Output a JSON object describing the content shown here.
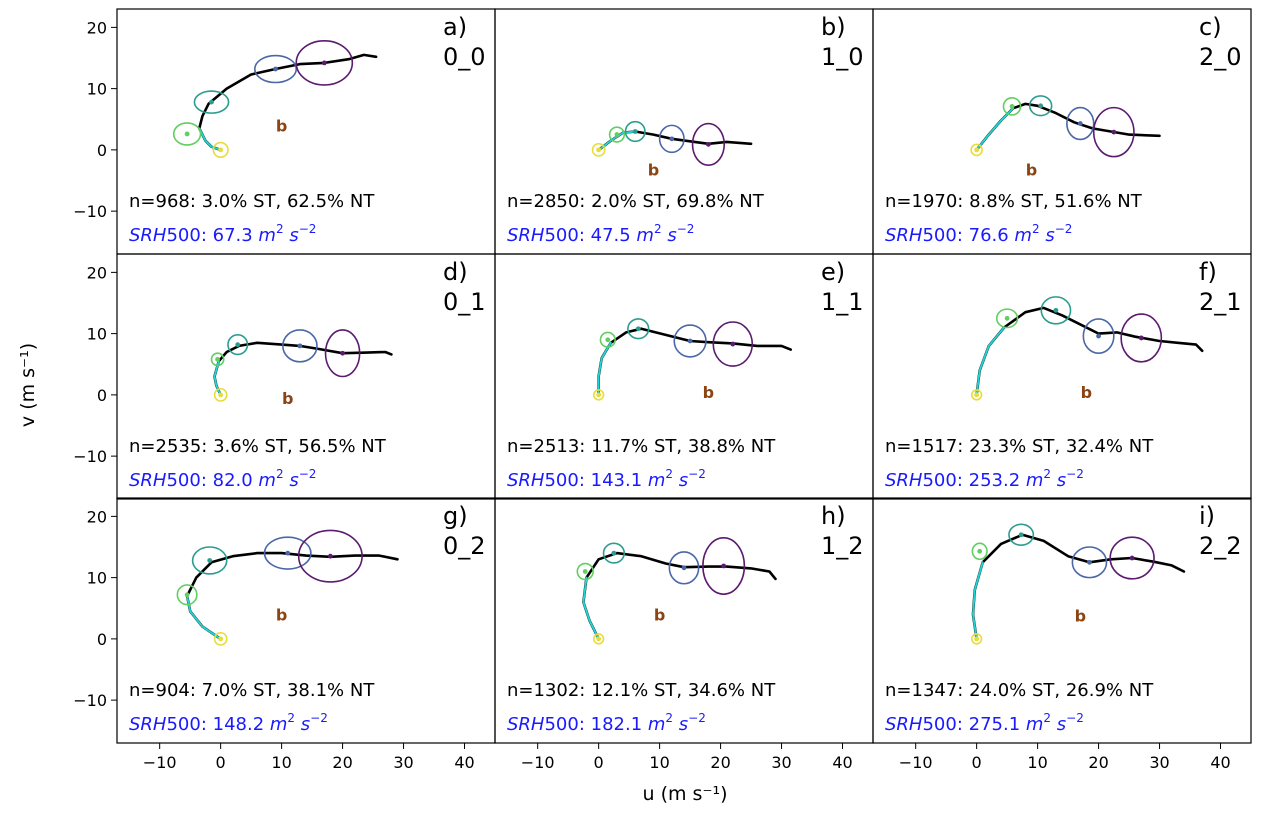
{
  "figure": {
    "xlabel": "u (m s⁻¹)",
    "ylabel": "v (m s⁻¹)"
  },
  "chart_data": {
    "type": "line",
    "xlim": [
      -17,
      45
    ],
    "ylim": [
      -17,
      23
    ],
    "xticks": [
      "−10",
      "0",
      "10",
      "20",
      "30",
      "40"
    ],
    "xtick_values": [
      -10,
      0,
      10,
      20,
      30,
      40
    ],
    "yticks": [
      "20",
      "10",
      "0",
      "−10"
    ],
    "ytick_values": [
      20,
      10,
      0,
      -10
    ],
    "grid": false,
    "marker_label": "b",
    "colors": {
      "hodograph": "#000000",
      "lowlevel": "#22d3d3",
      "ring0": "#e8dc3a",
      "ring1": "#5fcf5f",
      "ring2": "#2a9d8f",
      "ring3": "#4a67a8",
      "ring4": "#5b1b6e",
      "stats_text": "#000000",
      "srh_text": "#1a1aff",
      "b_label": "#8b4513"
    },
    "panels": [
      {
        "letter": "a)",
        "cluster": "0_0",
        "stats": "n=968: 3.0% ST, 62.5% NT",
        "srh_value": "67.3",
        "curve": [
          [
            0,
            0
          ],
          [
            -1.5,
            0.5
          ],
          [
            -2.5,
            1.5
          ],
          [
            -3.5,
            3.5
          ],
          [
            -3,
            5.5
          ],
          [
            -2,
            7.5
          ],
          [
            1,
            10
          ],
          [
            5,
            12.3
          ],
          [
            9,
            13.2
          ],
          [
            13,
            14
          ],
          [
            17,
            14.2
          ],
          [
            21,
            14.8
          ],
          [
            23.5,
            15.5
          ],
          [
            25.5,
            15.2
          ]
        ],
        "rings": [
          [
            0,
            0,
            1.2,
            1.2
          ],
          [
            -5.5,
            2.6,
            2.2,
            1.8
          ],
          [
            -1.5,
            7.8,
            2.8,
            1.8
          ],
          [
            9,
            13.2,
            3.4,
            2.2
          ],
          [
            17,
            14.2,
            4.6,
            3.6
          ]
        ],
        "b": [
          10,
          4
        ]
      },
      {
        "letter": "d)",
        "cluster": "0_1",
        "stats": "n=2535: 3.6% ST, 56.5% NT",
        "srh_value": "82.0",
        "curve": [
          [
            0,
            0
          ],
          [
            -0.7,
            1.5
          ],
          [
            -1,
            3
          ],
          [
            -0.3,
            5.5
          ],
          [
            1,
            7
          ],
          [
            3,
            8
          ],
          [
            6,
            8.5
          ],
          [
            10,
            8.2
          ],
          [
            13,
            8
          ],
          [
            16,
            7.5
          ],
          [
            20,
            6.8
          ],
          [
            24,
            6.9
          ],
          [
            27,
            7
          ],
          [
            28,
            6.6
          ]
        ],
        "rings": [
          [
            0,
            0,
            1,
            1
          ],
          [
            -0.5,
            5.8,
            1,
            1
          ],
          [
            2.8,
            8.2,
            1.6,
            1.6
          ],
          [
            13,
            8,
            2.8,
            2.6
          ],
          [
            20,
            6.8,
            2.8,
            3.8
          ]
        ],
        "b": [
          11,
          -0.5
        ]
      },
      {
        "letter": "g)",
        "cluster": "0_2",
        "stats": "n=904: 7.0% ST, 38.1% NT",
        "srh_value": "148.2",
        "curve": [
          [
            0,
            0
          ],
          [
            -3,
            2
          ],
          [
            -5,
            4.5
          ],
          [
            -5.5,
            7
          ],
          [
            -4,
            10
          ],
          [
            -1.5,
            12.5
          ],
          [
            2,
            13.5
          ],
          [
            6,
            14
          ],
          [
            10,
            14
          ],
          [
            14,
            13.6
          ],
          [
            18,
            13.4
          ],
          [
            22,
            13.6
          ],
          [
            26,
            13.6
          ],
          [
            29,
            13
          ]
        ],
        "rings": [
          [
            0,
            0,
            1,
            1
          ],
          [
            -5.5,
            7.2,
            1.6,
            1.6
          ],
          [
            -1.8,
            12.8,
            2.8,
            2.2
          ],
          [
            11,
            14,
            3.8,
            2.6
          ],
          [
            18,
            13.5,
            5.2,
            4.2
          ]
        ],
        "b": [
          10,
          4
        ]
      },
      {
        "letter": "b)",
        "cluster": "1_0",
        "stats": "n=2850: 2.0% ST, 69.8% NT",
        "srh_value": "47.5",
        "curve": [
          [
            0,
            0
          ],
          [
            2,
            1.5
          ],
          [
            4,
            2.8
          ],
          [
            6,
            3
          ],
          [
            9,
            2.5
          ],
          [
            12,
            1.8
          ],
          [
            15,
            1.4
          ],
          [
            18,
            1
          ],
          [
            21,
            1.3
          ],
          [
            25,
            1
          ]
        ],
        "rings": [
          [
            0,
            0,
            1,
            1
          ],
          [
            3,
            2.5,
            1.2,
            1.2
          ],
          [
            6,
            3,
            1.6,
            1.6
          ],
          [
            12,
            1.8,
            2,
            2.2
          ],
          [
            18,
            0.9,
            2.6,
            3.4
          ]
        ],
        "b": [
          9,
          -3.2
        ]
      },
      {
        "letter": "e)",
        "cluster": "1_1",
        "stats": "n=2513: 11.7% ST, 38.8% NT",
        "srh_value": "143.1",
        "curve": [
          [
            0,
            0
          ],
          [
            0,
            3
          ],
          [
            0.5,
            6
          ],
          [
            2,
            8.5
          ],
          [
            4.5,
            10.2
          ],
          [
            7,
            10.8
          ],
          [
            11,
            9.8
          ],
          [
            15,
            8.8
          ],
          [
            18,
            8.6
          ],
          [
            22,
            8.4
          ],
          [
            26,
            8
          ],
          [
            30,
            8
          ],
          [
            31.5,
            7.4
          ]
        ],
        "rings": [
          [
            0,
            0,
            0.8,
            0.8
          ],
          [
            1.5,
            9,
            1.2,
            1.2
          ],
          [
            6.5,
            10.8,
            1.7,
            1.6
          ],
          [
            15,
            8.8,
            2.6,
            2.6
          ],
          [
            22,
            8.3,
            3.2,
            3.6
          ]
        ],
        "b": [
          18,
          0.5
        ]
      },
      {
        "letter": "h)",
        "cluster": "1_2",
        "stats": "n=1302: 12.1% ST, 34.6% NT",
        "srh_value": "182.1",
        "curve": [
          [
            0,
            0
          ],
          [
            -1.5,
            3
          ],
          [
            -2.5,
            6
          ],
          [
            -2,
            10
          ],
          [
            0,
            13
          ],
          [
            3,
            14
          ],
          [
            7,
            13.5
          ],
          [
            11,
            12.3
          ],
          [
            14,
            11.7
          ],
          [
            18,
            11.8
          ],
          [
            21,
            11.8
          ],
          [
            25,
            11.5
          ],
          [
            28,
            11
          ],
          [
            29,
            9.8
          ]
        ],
        "rings": [
          [
            0,
            0,
            0.8,
            0.8
          ],
          [
            -2.2,
            11,
            1.3,
            1.3
          ],
          [
            2.5,
            14,
            1.7,
            1.6
          ],
          [
            14,
            11.6,
            2.4,
            2.6
          ],
          [
            20.5,
            11.9,
            3.4,
            4.6
          ]
        ],
        "b": [
          10,
          4
        ]
      },
      {
        "letter": "c)",
        "cluster": "2_0",
        "stats": "n=1970: 8.8% ST, 51.6% NT",
        "srh_value": "76.6",
        "curve": [
          [
            0,
            0
          ],
          [
            2,
            2.5
          ],
          [
            4,
            4.8
          ],
          [
            6,
            6.8
          ],
          [
            8,
            7.5
          ],
          [
            10,
            7.2
          ],
          [
            13,
            6
          ],
          [
            16,
            4.5
          ],
          [
            19,
            3.5
          ],
          [
            22,
            3
          ],
          [
            25,
            2.5
          ],
          [
            30,
            2.3
          ]
        ],
        "rings": [
          [
            0,
            0,
            0.9,
            0.9
          ],
          [
            5.8,
            7.1,
            1.4,
            1.4
          ],
          [
            10.5,
            7.2,
            1.8,
            1.6
          ],
          [
            17,
            4.3,
            2.2,
            2.6
          ],
          [
            22.5,
            2.9,
            3.3,
            4
          ]
        ],
        "b": [
          9,
          -3.2
        ]
      },
      {
        "letter": "f)",
        "cluster": "2_1",
        "stats": "n=1517: 23.3% ST, 32.4% NT",
        "srh_value": "253.2",
        "curve": [
          [
            0,
            0
          ],
          [
            0.5,
            4
          ],
          [
            2,
            8
          ],
          [
            4.5,
            11
          ],
          [
            8,
            13.5
          ],
          [
            11,
            14.2
          ],
          [
            14,
            13
          ],
          [
            17,
            11.5
          ],
          [
            20,
            10
          ],
          [
            23,
            10.2
          ],
          [
            26,
            9.5
          ],
          [
            30,
            8.8
          ],
          [
            33,
            8.5
          ],
          [
            36,
            8.2
          ],
          [
            37,
            7.2
          ]
        ],
        "rings": [
          [
            0,
            0,
            0.8,
            0.8
          ],
          [
            5,
            12.5,
            1.7,
            1.5
          ],
          [
            13,
            13.8,
            2.4,
            2.2
          ],
          [
            20,
            9.6,
            2.5,
            2.8
          ],
          [
            27,
            9.3,
            3.3,
            3.9
          ]
        ],
        "b": [
          18,
          0.5
        ]
      },
      {
        "letter": "i)",
        "cluster": "2_2",
        "stats": "n=1347: 24.0% ST, 26.9% NT",
        "srh_value": "275.1",
        "curve": [
          [
            0,
            0
          ],
          [
            -0.6,
            4
          ],
          [
            -0.3,
            8
          ],
          [
            1,
            12.5
          ],
          [
            4,
            15.5
          ],
          [
            7.5,
            17
          ],
          [
            11,
            16
          ],
          [
            15,
            13.5
          ],
          [
            18.5,
            12.5
          ],
          [
            22,
            13
          ],
          [
            25.5,
            13.2
          ],
          [
            29,
            12.6
          ],
          [
            32,
            12
          ],
          [
            34,
            11
          ]
        ],
        "rings": [
          [
            0,
            0,
            0.8,
            0.8
          ],
          [
            0.5,
            14.3,
            1.2,
            1.3
          ],
          [
            7.3,
            17,
            2,
            1.7
          ],
          [
            18.5,
            12.5,
            2.8,
            2.5
          ],
          [
            25.5,
            13.2,
            3.6,
            3.4
          ]
        ],
        "b": [
          17,
          3.8
        ]
      }
    ]
  }
}
